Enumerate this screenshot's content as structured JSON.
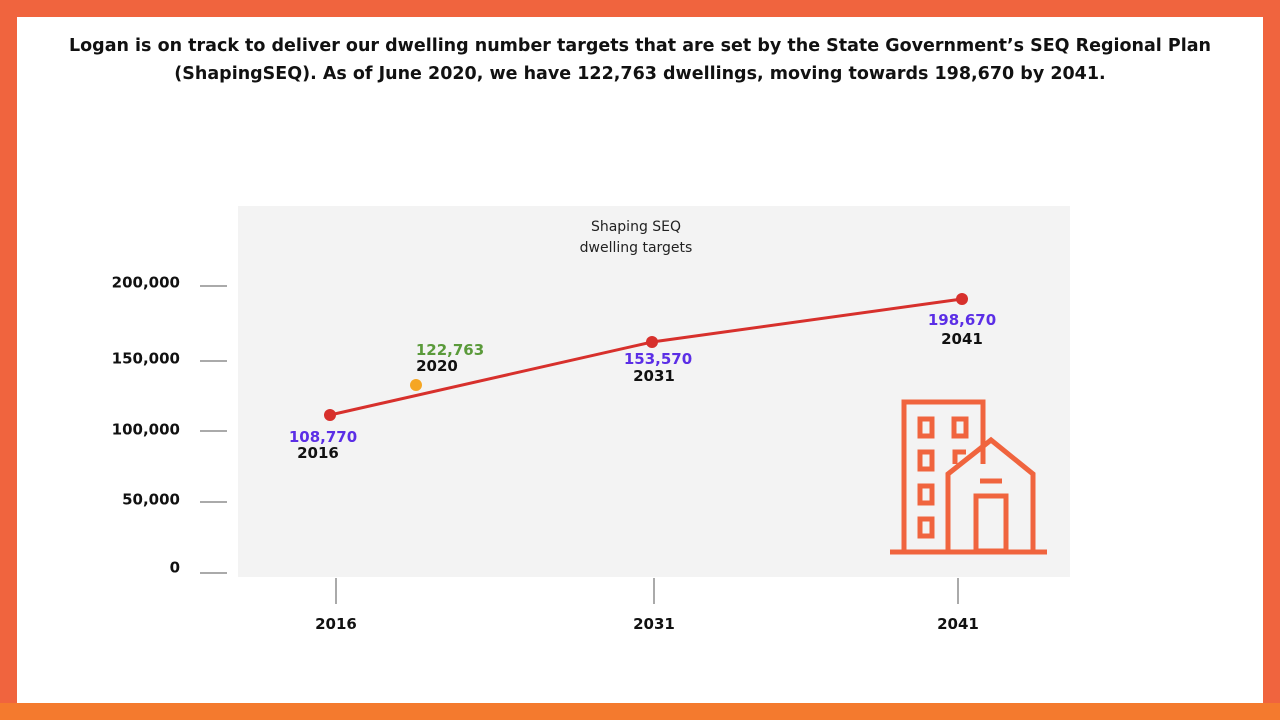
{
  "headline": {
    "line1": "Logan is on track to deliver our dwelling number targets that are set by the State Government’s SEQ Regional Plan",
    "line2": "(ShapingSEQ). As of June 2020, we have 122,763 dwellings, moving towards 198,670 by 2041."
  },
  "colors": {
    "border": "#f0643e",
    "bottom_bar": "#f47a2e",
    "plot_bg": "#f3f3f3",
    "target_line": "#d7302c",
    "target_label": "#5b2ee6",
    "actual_point": "#f5a623",
    "actual_label": "#5a9a3a",
    "building_icon": "#f0643e"
  },
  "chart_data": {
    "type": "line",
    "title": [
      "Shaping SEQ",
      "dwelling targets"
    ],
    "y_ticks": [
      "200,000",
      "150,000",
      "100,000",
      "50,000",
      "0"
    ],
    "x_ticks": [
      "2016",
      "2031",
      "2041"
    ],
    "series": [
      {
        "role": "target",
        "points": [
          {
            "year": "2016",
            "value": 108770,
            "value_label": "108,770"
          },
          {
            "year": "2031",
            "value": 153570,
            "value_label": "153,570"
          },
          {
            "year": "2041",
            "value": 198670,
            "value_label": "198,670"
          }
        ]
      },
      {
        "role": "actual",
        "points": [
          {
            "year": "2020",
            "value": 122763,
            "value_label": "122,763"
          }
        ]
      }
    ],
    "icon": "building-icon"
  }
}
